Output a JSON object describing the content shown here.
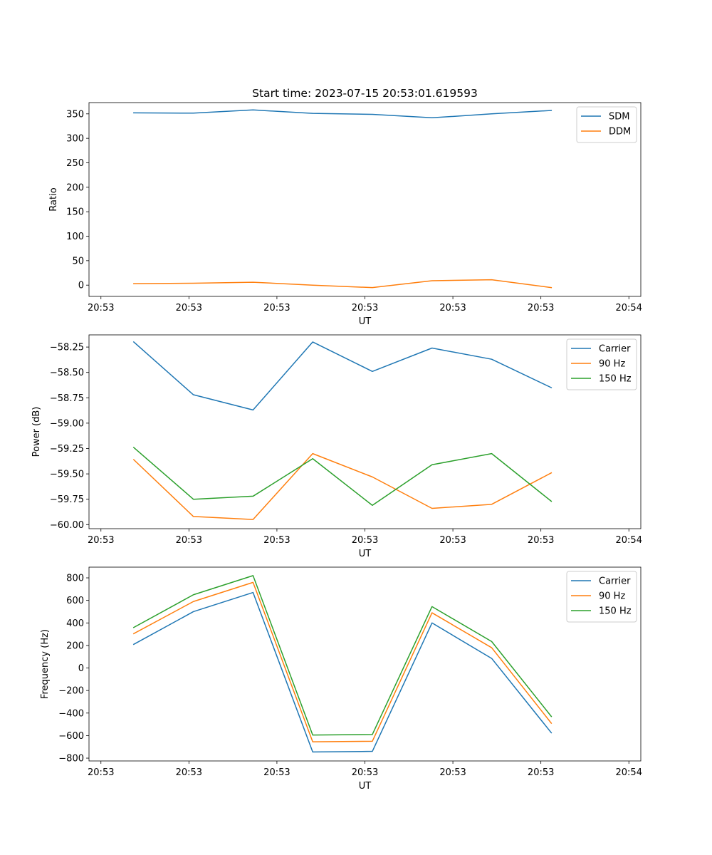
{
  "chart_data": [
    {
      "type": "line",
      "title": "Start time: 2023-07-15 20:53:01.619593",
      "xlabel": "UT",
      "ylabel": "Ratio",
      "xticks": [
        "20:53",
        "20:53",
        "20:53",
        "20:53",
        "20:53",
        "20:53",
        "20:54"
      ],
      "xlim": [
        -0.75,
        8.5
      ],
      "x": [
        0,
        1,
        2,
        3,
        4,
        5,
        6,
        7
      ],
      "ylim": [
        -23,
        373
      ],
      "yticks": [
        0,
        50,
        100,
        150,
        200,
        250,
        300,
        350
      ],
      "ytick_labels": [
        "0",
        "50",
        "100",
        "150",
        "200",
        "250",
        "300",
        "350"
      ],
      "series": [
        {
          "name": "SDM",
          "color": "#1f77b4",
          "values": [
            352,
            351.5,
            358,
            351,
            349,
            342,
            350,
            357
          ]
        },
        {
          "name": "DDM",
          "color": "#ff7f0e",
          "values": [
            3,
            4,
            6,
            0,
            -5,
            9,
            11,
            -5
          ]
        }
      ],
      "legend": "top-right"
    },
    {
      "type": "line",
      "title": "",
      "xlabel": "UT",
      "ylabel": "Power (dB)",
      "xticks": [
        "20:53",
        "20:53",
        "20:53",
        "20:53",
        "20:53",
        "20:53",
        "20:54"
      ],
      "xlim": [
        -0.75,
        8.5
      ],
      "x": [
        0,
        1,
        2,
        3,
        4,
        5,
        6,
        7
      ],
      "ylim": [
        -60.04,
        -58.13
      ],
      "yticks": [
        -60.0,
        -59.75,
        -59.5,
        -59.25,
        -59.0,
        -58.75,
        -58.5,
        -58.25
      ],
      "ytick_labels": [
        "−60.00",
        "−59.75",
        "−59.50",
        "−59.25",
        "−59.00",
        "−58.75",
        "−58.50",
        "−58.25"
      ],
      "series": [
        {
          "name": "Carrier",
          "color": "#1f77b4",
          "values": [
            -58.2,
            -58.72,
            -58.87,
            -58.2,
            -58.49,
            -58.26,
            -58.37,
            -58.65
          ]
        },
        {
          "name": "90 Hz",
          "color": "#ff7f0e",
          "values": [
            -59.36,
            -59.92,
            -59.95,
            -59.3,
            -59.53,
            -59.84,
            -59.8,
            -59.49
          ]
        },
        {
          "name": "150 Hz",
          "color": "#2ca02c",
          "values": [
            -59.24,
            -59.75,
            -59.72,
            -59.35,
            -59.81,
            -59.41,
            -59.3,
            -59.77
          ]
        }
      ],
      "legend": "top-right"
    },
    {
      "type": "line",
      "title": "",
      "xlabel": "UT",
      "ylabel": "Frequency (Hz)",
      "xticks": [
        "20:53",
        "20:53",
        "20:53",
        "20:53",
        "20:53",
        "20:53",
        "20:54"
      ],
      "xlim": [
        -0.75,
        8.5
      ],
      "x": [
        0,
        1,
        2,
        3,
        4,
        5,
        6,
        7
      ],
      "ylim": [
        -825,
        895
      ],
      "yticks": [
        -800,
        -600,
        -400,
        -200,
        0,
        200,
        400,
        600,
        800
      ],
      "ytick_labels": [
        "−800",
        "−600",
        "−400",
        "−200",
        "0",
        "200",
        "400",
        "600",
        "800"
      ],
      "series": [
        {
          "name": "Carrier",
          "color": "#1f77b4",
          "values": [
            210,
            500,
            670,
            -745,
            -740,
            400,
            85,
            -575
          ]
        },
        {
          "name": "90 Hz",
          "color": "#ff7f0e",
          "values": [
            305,
            590,
            760,
            -655,
            -650,
            490,
            180,
            -490
          ]
        },
        {
          "name": "150 Hz",
          "color": "#2ca02c",
          "values": [
            360,
            650,
            820,
            -595,
            -590,
            545,
            235,
            -430
          ]
        }
      ],
      "legend": "top-right"
    }
  ]
}
